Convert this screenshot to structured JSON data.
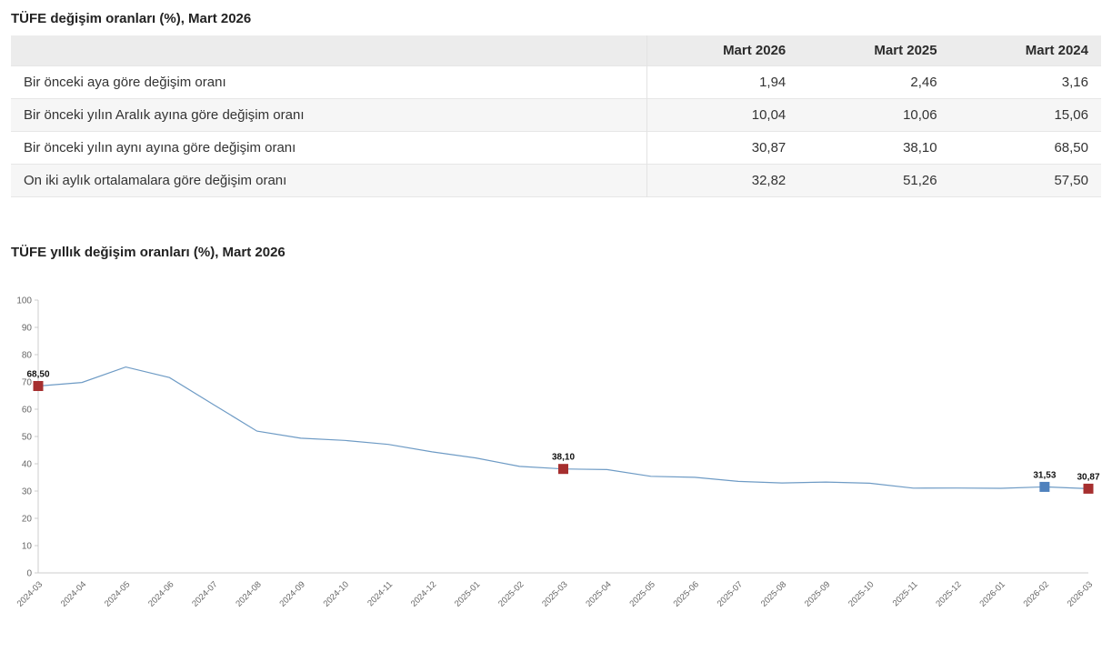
{
  "table_section": {
    "title": "TÜFE değişim oranları (%), Mart 2026",
    "columns": [
      "",
      "Mart 2026",
      "Mart 2025",
      "Mart 2024"
    ],
    "rows": [
      {
        "label": "Bir önceki aya göre değişim oranı",
        "values": [
          "1,94",
          "2,46",
          "3,16"
        ]
      },
      {
        "label": "Bir önceki yılın Aralık ayına göre değişim oranı",
        "values": [
          "10,04",
          "10,06",
          "15,06"
        ]
      },
      {
        "label": "Bir önceki yılın aynı ayına göre değişim oranı",
        "values": [
          "30,87",
          "38,10",
          "68,50"
        ]
      },
      {
        "label": "On iki aylık ortalamalara göre değişim oranı",
        "values": [
          "32,82",
          "51,26",
          "57,50"
        ]
      }
    ]
  },
  "chart_section": {
    "title": "TÜFE yıllık değişim oranları (%), Mart 2026"
  },
  "chart_data": {
    "type": "line",
    "title": "TÜFE yıllık değişim oranları (%), Mart 2026",
    "x": [
      "2024-03",
      "2024-04",
      "2024-05",
      "2024-06",
      "2024-07",
      "2024-08",
      "2024-09",
      "2024-10",
      "2024-11",
      "2024-12",
      "2025-01",
      "2025-02",
      "2025-03",
      "2025-04",
      "2025-05",
      "2025-06",
      "2025-07",
      "2025-08",
      "2025-09",
      "2025-10",
      "2025-11",
      "2025-12",
      "2026-01",
      "2026-02",
      "2026-03"
    ],
    "values": [
      68.5,
      69.8,
      75.45,
      71.6,
      61.78,
      51.97,
      49.38,
      48.58,
      47.09,
      44.38,
      42.12,
      39.05,
      38.1,
      37.86,
      35.41,
      35.05,
      33.52,
      32.95,
      33.29,
      32.87,
      31.07,
      31.1,
      31.0,
      31.53,
      30.87
    ],
    "ylim": [
      0,
      100
    ],
    "y_ticks": [
      0,
      10,
      20,
      30,
      40,
      50,
      60,
      70,
      80,
      90,
      100
    ],
    "grid": false,
    "legend": "none",
    "line_color": "#6e9bc5",
    "axis_color": "#cccccc",
    "tick_label_color": "#666666",
    "annotated_points": [
      {
        "x": "2024-03",
        "value": 68.5,
        "label": "68,50",
        "marker_color": "#a62f2f"
      },
      {
        "x": "2025-03",
        "value": 38.1,
        "label": "38,10",
        "marker_color": "#a62f2f"
      },
      {
        "x": "2026-02",
        "value": 31.53,
        "label": "31,53",
        "marker_color": "#4f81bd"
      },
      {
        "x": "2026-03",
        "value": 30.87,
        "label": "30,87",
        "marker_color": "#a62f2f"
      }
    ]
  }
}
